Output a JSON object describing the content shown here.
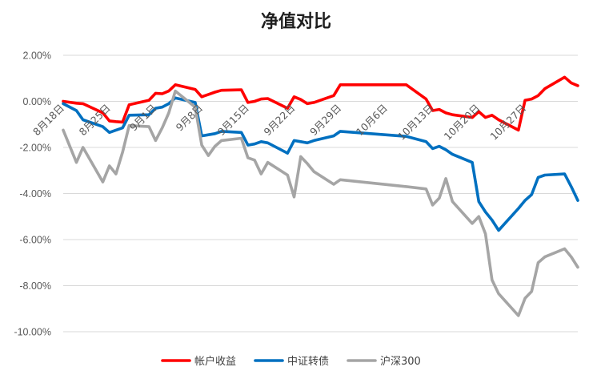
{
  "chart_data": {
    "type": "line",
    "title": "净值对比",
    "xlabel": "",
    "ylabel": "",
    "ylim": [
      -10,
      2
    ],
    "yticks": [
      2,
      0,
      -2,
      -4,
      -6,
      -8,
      -10
    ],
    "ytick_labels": [
      "2.00%",
      "0.00%",
      "-2.00%",
      "-4.00%",
      "-6.00%",
      "-8.00%",
      "-10.00%"
    ],
    "x": [
      "8月18日",
      "8月19日",
      "8月20日",
      "8月21日",
      "8月24日",
      "8月25日",
      "8月26日",
      "8月27日",
      "8月28日",
      "8月31日",
      "9月1日",
      "9月2日",
      "9月3日",
      "9月4日",
      "9月7日",
      "9月8日",
      "9月9日",
      "9月10日",
      "9月11日",
      "9月14日",
      "9月15日",
      "9月16日",
      "9月17日",
      "9月18日",
      "9月21日",
      "9月22日",
      "9月23日",
      "9月24日",
      "9月25日",
      "9月28日",
      "9月29日",
      "9月30日",
      "10月9日",
      "10月12日",
      "10月13日",
      "10月14日",
      "10月15日",
      "10月16日",
      "10月19日",
      "10月20日",
      "10月21日",
      "10月22日",
      "10月23日",
      "10月26日",
      "10月27日",
      "10月28日",
      "10月29日",
      "10月30日",
      "11月2日",
      "11月3日",
      "11月4日"
    ],
    "xtick_labels": [
      "8月18日",
      "8月25日",
      "9月1日",
      "9月8日",
      "9月15日",
      "9月22日",
      "9月29日",
      "10月6日",
      "10月13日",
      "10月20日",
      "10月27日"
    ],
    "grid": true,
    "legend_position": "bottom",
    "series": [
      {
        "name": "帐户收益",
        "color": "#ff0000",
        "points": [
          [
            "8月18日",
            0.0
          ],
          [
            "8月20日",
            -0.08
          ],
          [
            "8月21日",
            -0.1
          ],
          [
            "8月24日",
            -0.5
          ],
          [
            "8月25日",
            -0.85
          ],
          [
            "8月26日",
            -0.88
          ],
          [
            "8月27日",
            -0.9
          ],
          [
            "8月28日",
            -0.15
          ],
          [
            "8月31日",
            0.05
          ],
          [
            "9月1日",
            0.35
          ],
          [
            "9月2日",
            0.33
          ],
          [
            "9月3日",
            0.45
          ],
          [
            "9月4日",
            0.72
          ],
          [
            "9月7日",
            0.52
          ],
          [
            "9月8日",
            0.2
          ],
          [
            "9月9日",
            0.3
          ],
          [
            "9月10日",
            0.4
          ],
          [
            "9月11日",
            0.48
          ],
          [
            "9月14日",
            0.5
          ],
          [
            "9月15日",
            -0.05
          ],
          [
            "9月16日",
            0.0
          ],
          [
            "9月17日",
            0.1
          ],
          [
            "9月18日",
            0.12
          ],
          [
            "9月21日",
            -0.3
          ],
          [
            "9月22日",
            0.2
          ],
          [
            "9月23日",
            0.08
          ],
          [
            "9月24日",
            -0.1
          ],
          [
            "9月25日",
            -0.05
          ],
          [
            "9月28日",
            0.25
          ],
          [
            "9月29日",
            0.72
          ],
          [
            "10月9日",
            0.72
          ],
          [
            "10月12日",
            0.1
          ],
          [
            "10月13日",
            -0.4
          ],
          [
            "10月14日",
            -0.35
          ],
          [
            "10月15日",
            -0.5
          ],
          [
            "10月16日",
            -0.58
          ],
          [
            "10月19日",
            -0.7
          ],
          [
            "10月20日",
            -0.45
          ],
          [
            "10月21日",
            -0.7
          ],
          [
            "10月22日",
            -0.6
          ],
          [
            "10月23日",
            -0.8
          ],
          [
            "10月26日",
            -1.25
          ],
          [
            "10月27日",
            0.05
          ],
          [
            "10月28日",
            0.1
          ],
          [
            "10月29日",
            0.25
          ],
          [
            "10月30日",
            0.55
          ],
          [
            "11月2日",
            1.05
          ],
          [
            "11月3日",
            0.8
          ],
          [
            "11月4日",
            0.68
          ]
        ]
      },
      {
        "name": "中证转债",
        "color": "#0070c0",
        "points": [
          [
            "8月18日",
            -0.1
          ],
          [
            "8月20日",
            -0.4
          ],
          [
            "8月21日",
            -0.8
          ],
          [
            "8月24日",
            -1.1
          ],
          [
            "8月25日",
            -1.35
          ],
          [
            "8月26日",
            -1.25
          ],
          [
            "8月27日",
            -1.15
          ],
          [
            "8月28日",
            -0.6
          ],
          [
            "8月31日",
            -0.58
          ],
          [
            "9月1日",
            -0.3
          ],
          [
            "9月2日",
            -0.25
          ],
          [
            "9月3日",
            -0.1
          ],
          [
            "9月4日",
            0.15
          ],
          [
            "9月7日",
            -0.05
          ],
          [
            "9月8日",
            -1.5
          ],
          [
            "9月9日",
            -1.45
          ],
          [
            "9月10日",
            -1.4
          ],
          [
            "9月11日",
            -1.3
          ],
          [
            "9月14日",
            -1.35
          ],
          [
            "9月15日",
            -1.9
          ],
          [
            "9月16日",
            -1.85
          ],
          [
            "9月17日",
            -1.75
          ],
          [
            "9月18日",
            -1.8
          ],
          [
            "9月21日",
            -2.25
          ],
          [
            "9月22日",
            -1.7
          ],
          [
            "9月23日",
            -1.75
          ],
          [
            "9月24日",
            -1.8
          ],
          [
            "9月25日",
            -1.7
          ],
          [
            "9月28日",
            -1.5
          ],
          [
            "9月29日",
            -1.3
          ],
          [
            "10月9日",
            -1.52
          ],
          [
            "10月12日",
            -1.75
          ],
          [
            "10月13日",
            -2.05
          ],
          [
            "10月14日",
            -1.95
          ],
          [
            "10月15日",
            -2.1
          ],
          [
            "10月16日",
            -2.3
          ],
          [
            "10月19日",
            -2.65
          ],
          [
            "10月20日",
            -4.35
          ],
          [
            "10月21日",
            -4.8
          ],
          [
            "10月22日",
            -5.15
          ],
          [
            "10月23日",
            -5.6
          ],
          [
            "10月26日",
            -4.65
          ],
          [
            "10月27日",
            -4.3
          ],
          [
            "10月28日",
            -4.05
          ],
          [
            "10月29日",
            -3.3
          ],
          [
            "10月30日",
            -3.2
          ],
          [
            "11月2日",
            -3.15
          ],
          [
            "11月3日",
            -3.7
          ],
          [
            "11月4日",
            -4.3
          ]
        ]
      },
      {
        "name": "沪深300",
        "color": "#a5a5a5",
        "points": [
          [
            "8月18日",
            -1.25
          ],
          [
            "8月20日",
            -2.65
          ],
          [
            "8月21日",
            -2.0
          ],
          [
            "8月24日",
            -3.5
          ],
          [
            "8月25日",
            -2.8
          ],
          [
            "8月26日",
            -3.15
          ],
          [
            "8月27日",
            -2.2
          ],
          [
            "8月28日",
            -1.05
          ],
          [
            "8月31日",
            -1.1
          ],
          [
            "9月1日",
            -1.7
          ],
          [
            "9月2日",
            -1.15
          ],
          [
            "9月3日",
            -0.5
          ],
          [
            "9月4日",
            0.45
          ],
          [
            "9月7日",
            -0.25
          ],
          [
            "9月8日",
            -1.9
          ],
          [
            "9月9日",
            -2.35
          ],
          [
            "9月10日",
            -1.95
          ],
          [
            "9月11日",
            -1.7
          ],
          [
            "9月14日",
            -1.6
          ],
          [
            "9月15日",
            -2.45
          ],
          [
            "9月16日",
            -2.55
          ],
          [
            "9月17日",
            -3.15
          ],
          [
            "9月18日",
            -2.65
          ],
          [
            "9月21日",
            -3.2
          ],
          [
            "9月22日",
            -4.15
          ],
          [
            "9月23日",
            -2.4
          ],
          [
            "9月24日",
            -2.7
          ],
          [
            "9月25日",
            -3.05
          ],
          [
            "9月28日",
            -3.6
          ],
          [
            "9月29日",
            -3.4
          ],
          [
            "10月9日",
            -3.7
          ],
          [
            "10月12日",
            -3.8
          ],
          [
            "10月13日",
            -4.5
          ],
          [
            "10月14日",
            -4.2
          ],
          [
            "10月15日",
            -3.35
          ],
          [
            "10月16日",
            -4.35
          ],
          [
            "10月19日",
            -5.3
          ],
          [
            "10月20日",
            -5.0
          ],
          [
            "10月21日",
            -5.75
          ],
          [
            "10月22日",
            -7.75
          ],
          [
            "10月23日",
            -8.35
          ],
          [
            "10月26日",
            -9.3
          ],
          [
            "10月27日",
            -8.55
          ],
          [
            "10月28日",
            -8.25
          ],
          [
            "10月29日",
            -7.0
          ],
          [
            "10月30日",
            -6.75
          ],
          [
            "11月2日",
            -6.4
          ],
          [
            "11月3日",
            -6.75
          ],
          [
            "11月4日",
            -7.2
          ]
        ]
      }
    ]
  }
}
